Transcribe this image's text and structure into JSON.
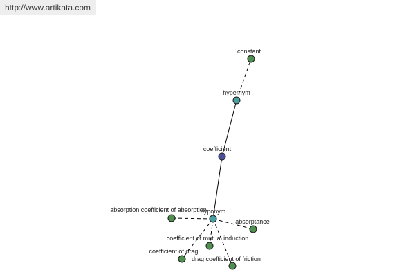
{
  "site": {
    "url": "http://www.artikata.com"
  },
  "colors": {
    "center": "#4a4f9a",
    "relation": "#4aa0a0",
    "leaf": "#4f8f4f",
    "edge": "#000000",
    "stroke": "#1a1a1a"
  },
  "nodes": {
    "constant": {
      "label": "constant"
    },
    "hypernym": {
      "label": "hypernym"
    },
    "coefficient": {
      "label": "coefficient"
    },
    "hyponym": {
      "label": "hyponym"
    },
    "absorption_coefficient": {
      "label": "absorption coefficient of absorption"
    },
    "absorptance": {
      "label": "absorptance"
    },
    "mutual_induction": {
      "label": "coefficient of mutual induction"
    },
    "drag": {
      "label": "coefficient of drag"
    },
    "friction": {
      "label": "drag coefficient of friction"
    }
  }
}
